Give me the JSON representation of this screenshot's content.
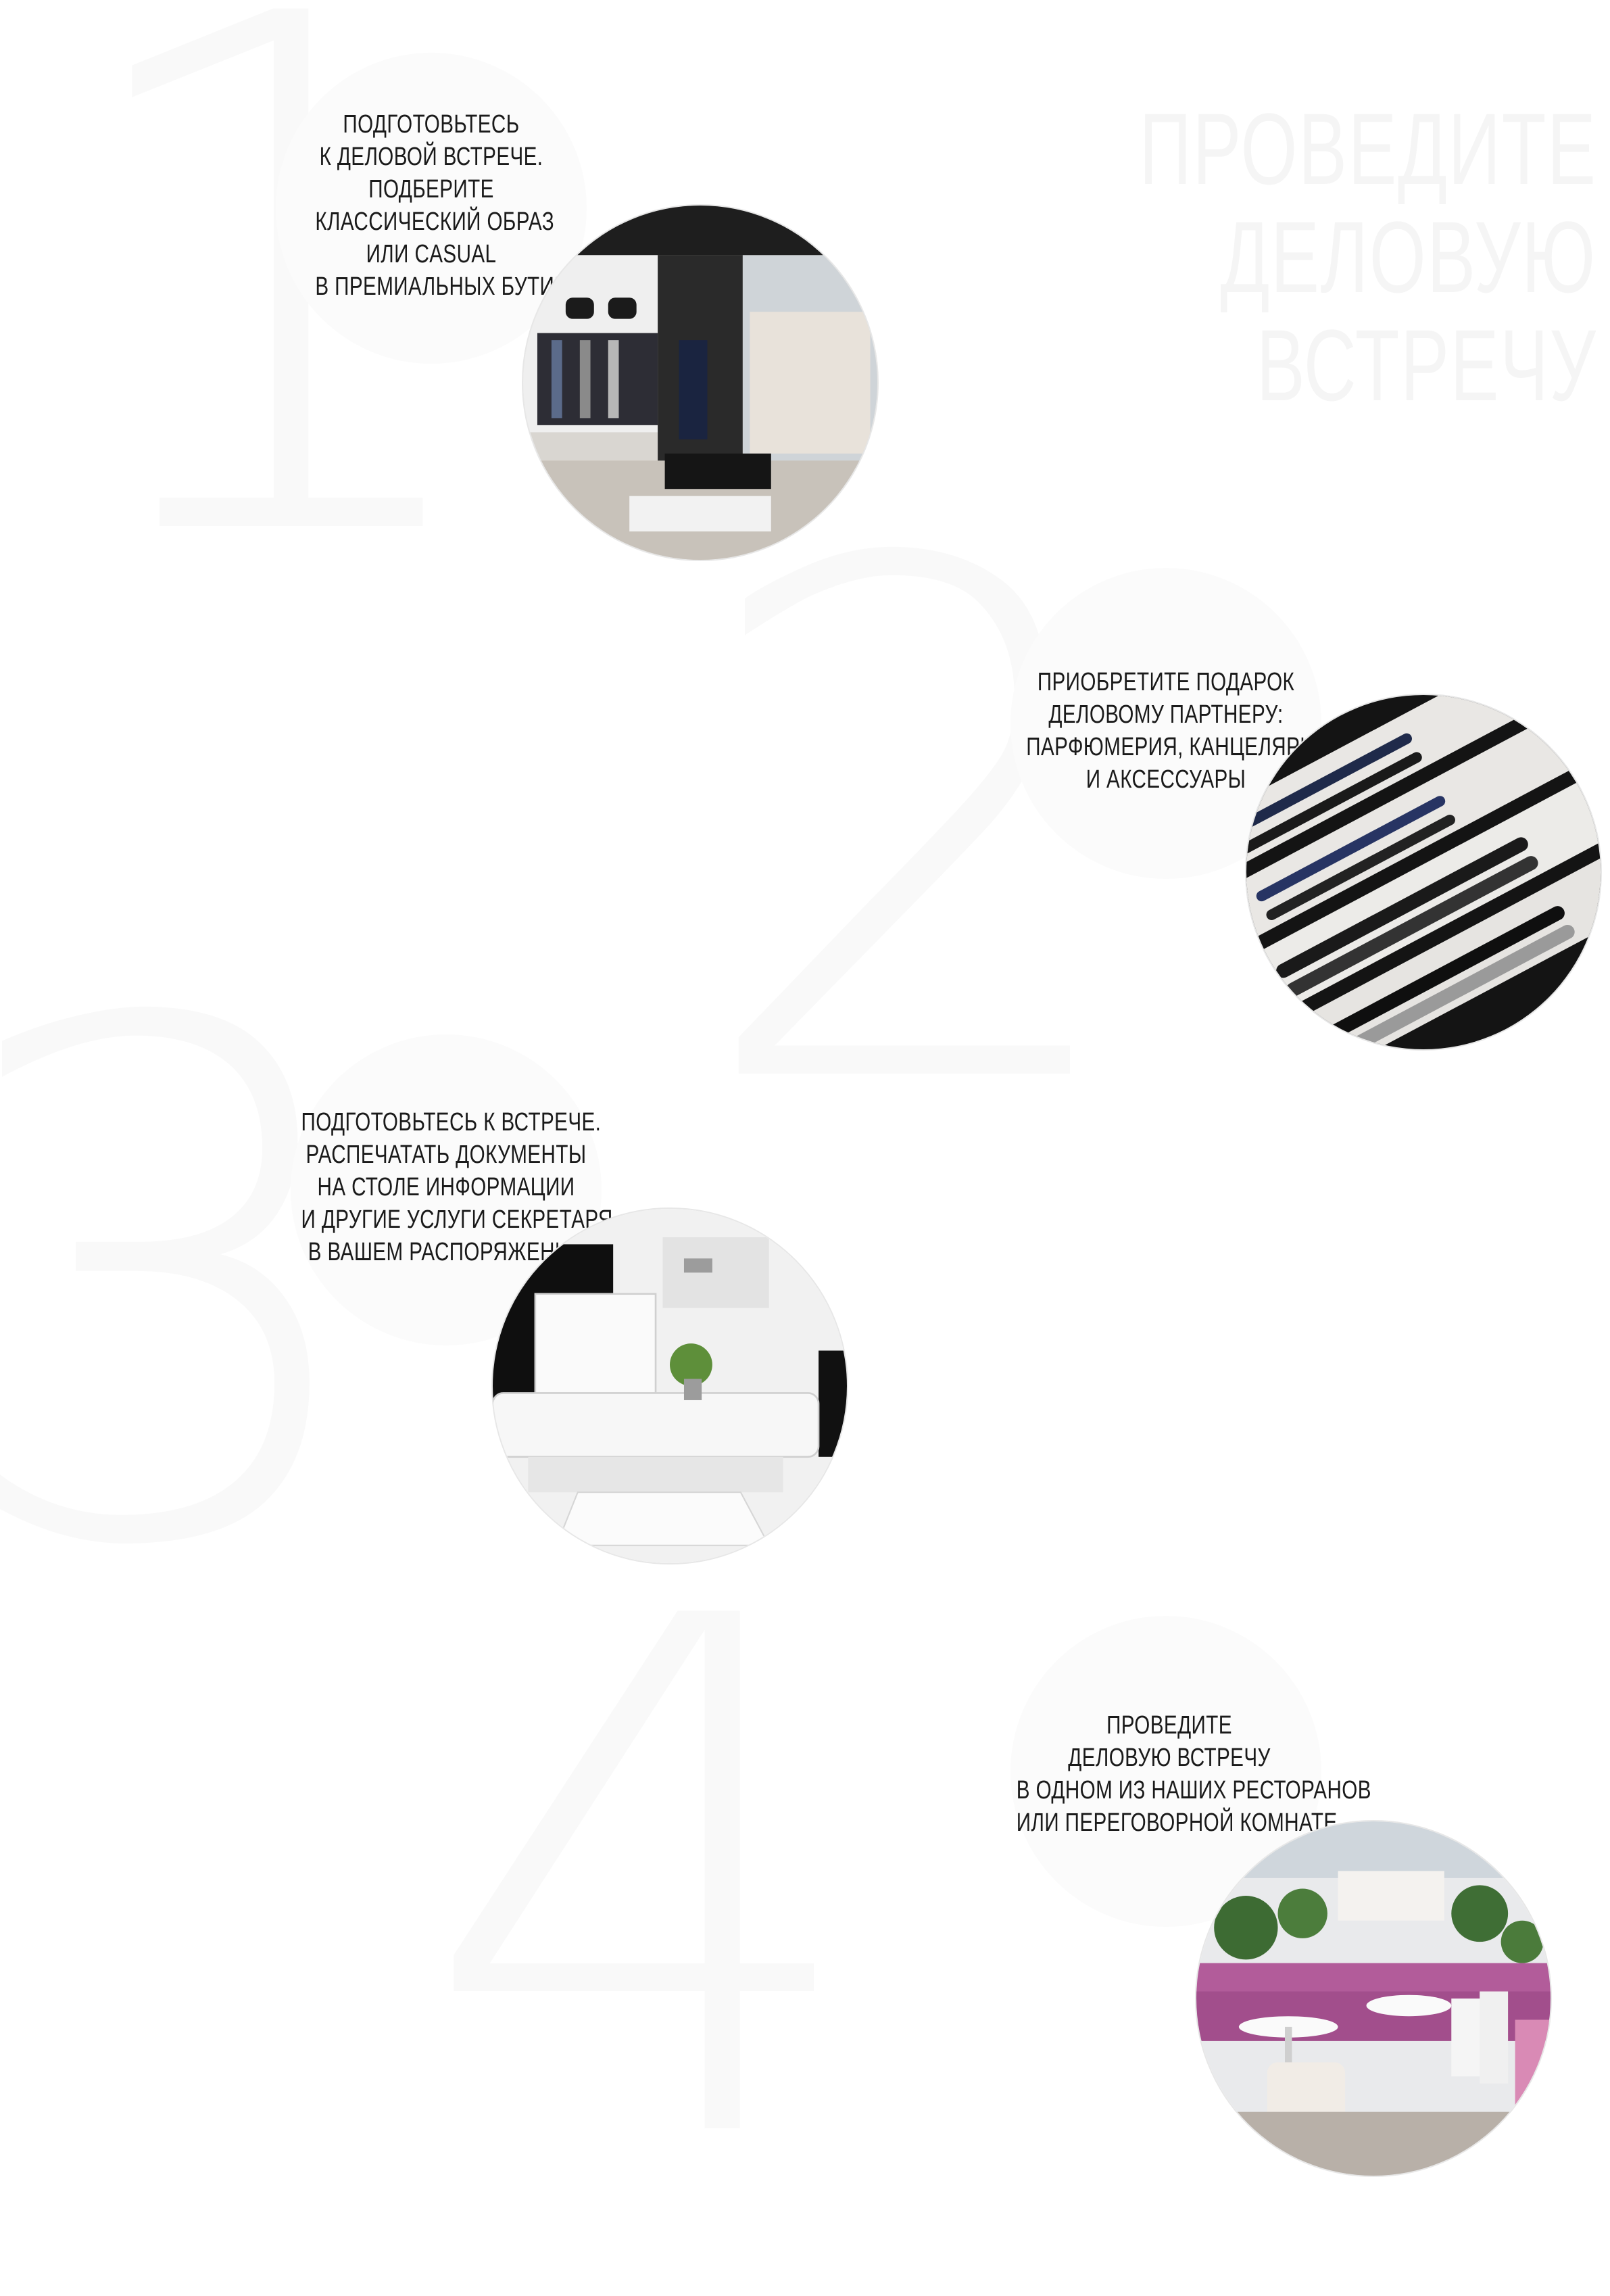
{
  "background_numbers": [
    "1",
    "2",
    "3",
    "4"
  ],
  "title": [
    "ПРОВЕДИТЕ",
    "ДЕЛОВУЮ",
    "ВСТРЕЧУ"
  ],
  "steps": [
    {
      "caption": [
        "ПОДГОТОВЬТЕСЬ",
        "К ДЕЛОВОЙ ВСТРЕЧЕ.",
        "ПОДБЕРИТЕ",
        "КЛАССИЧЕСКИЙ ОБРАЗ",
        "ИЛИ CASUAL",
        "В ПРЕМИАЛЬНЫХ БУТИКАХ"
      ],
      "image": "boutique-interior-photo"
    },
    {
      "caption": [
        "ПРИОБРЕТИТЕ ПОДАРОК",
        "ДЕЛОВОМУ ПАРТНЕРУ:",
        "ПАРФЮМЕРИЯ, КАНЦЕЛЯРИЯ",
        "И АКСЕССУАРЫ"
      ],
      "image": "pens-display-photo"
    },
    {
      "caption": [
        "ПОДГОТОВЬТЕСЬ К ВСТРЕЧЕ.",
        "РАСПЕЧАТАТЬ ДОКУМЕНТЫ",
        "НА СТОЛЕ ИНФОРМАЦИИ",
        "И ДРУГИЕ УСЛУГИ СЕКРЕТАРЯ",
        "В ВАШЕМ РАСПОРЯЖЕНИИ"
      ],
      "image": "printer-photo"
    },
    {
      "caption": [
        "ПРОВЕДИТЕ",
        "ДЕЛОВУЮ ВСТРЕЧУ",
        "В ОДНОМ ИЗ НАШИХ РЕСТОРАНОВ",
        "ИЛИ ПЕРЕГОВОРНОЙ КОМНАТЕ"
      ],
      "image": "restaurant-photo"
    }
  ]
}
